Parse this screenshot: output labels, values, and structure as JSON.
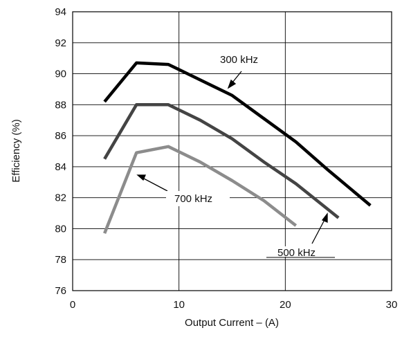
{
  "chart_data": {
    "type": "line",
    "title": "",
    "xlabel": "Output Current – (A)",
    "ylabel": "Efficiency (%)",
    "xlim": [
      0,
      30
    ],
    "ylim": [
      76,
      94
    ],
    "x_ticks": [
      0,
      10,
      20,
      30
    ],
    "y_ticks": [
      76,
      78,
      80,
      82,
      84,
      86,
      88,
      90,
      92,
      94
    ],
    "grid": "x",
    "series": [
      {
        "name": "300 kHz",
        "color": "#000000",
        "x": [
          3,
          6,
          9,
          12,
          15,
          18,
          21,
          24,
          28
        ],
        "y": [
          88.2,
          90.7,
          90.6,
          89.6,
          88.6,
          87.1,
          85.6,
          83.8,
          81.5
        ]
      },
      {
        "name": "500 kHz",
        "color": "#444444",
        "x": [
          3,
          6,
          9,
          12,
          15,
          18,
          21,
          25
        ],
        "y": [
          84.5,
          88.0,
          88.0,
          87.0,
          85.8,
          84.3,
          82.9,
          80.7
        ]
      },
      {
        "name": "700 kHz",
        "color": "#8c8c8c",
        "x": [
          3,
          6,
          9,
          12,
          15,
          18,
          21
        ],
        "y": [
          79.7,
          84.9,
          85.3,
          84.3,
          83.1,
          81.8,
          80.2
        ]
      }
    ],
    "annotations": [
      {
        "text": "300 kHz",
        "series": "300 kHz"
      },
      {
        "text": "700 kHz",
        "series": "700 kHz"
      },
      {
        "text": "500 kHz",
        "series": "500 kHz"
      }
    ]
  }
}
